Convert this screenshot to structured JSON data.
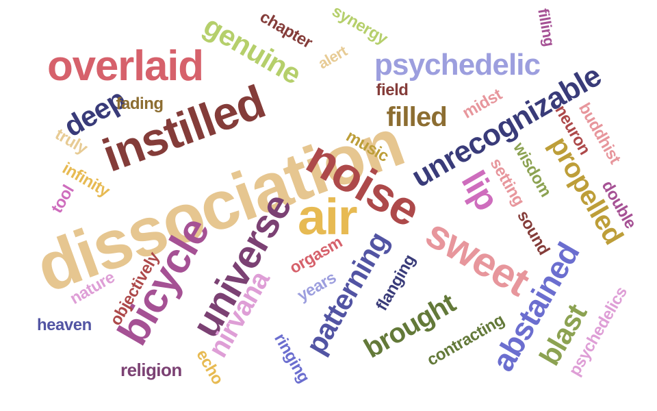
{
  "words": [
    {
      "text": "dissociation",
      "color": "#e6c690",
      "angle": -20
    },
    {
      "text": "instilled",
      "color": "#843c39",
      "angle": -20
    },
    {
      "text": "overlaid",
      "color": "#d6616b",
      "angle": 0
    },
    {
      "text": "psychedelic",
      "color": "#9c9ede",
      "angle": 0
    },
    {
      "text": "unrecognizable",
      "color": "#393b79",
      "angle": -30
    },
    {
      "text": "genuine",
      "color": "#b5cf6b",
      "angle": 30
    },
    {
      "text": "chapter",
      "color": "#843c39",
      "angle": 30
    },
    {
      "text": "synergy",
      "color": "#b5cf6b",
      "angle": 30
    },
    {
      "text": "alert",
      "color": "#e7cb94",
      "angle": -30
    },
    {
      "text": "filling",
      "color": "#a55194",
      "angle": 80
    },
    {
      "text": "deep",
      "color": "#393b79",
      "angle": -30
    },
    {
      "text": "fading",
      "color": "#8c6d31",
      "angle": 0
    },
    {
      "text": "field",
      "color": "#843c39",
      "angle": 0
    },
    {
      "text": "filled",
      "color": "#8c6d31",
      "angle": 0
    },
    {
      "text": "midst",
      "color": "#e7969c",
      "angle": -30
    },
    {
      "text": "neuron",
      "color": "#ad494a",
      "angle": 60
    },
    {
      "text": "buddhist",
      "color": "#e7969c",
      "angle": 60
    },
    {
      "text": "truly",
      "color": "#e7cb94",
      "angle": 30
    },
    {
      "text": "infinity",
      "color": "#e7ba52",
      "angle": 30
    },
    {
      "text": "music",
      "color": "#bd9e39",
      "angle": 30
    },
    {
      "text": "noise",
      "color": "#ad494a",
      "angle": 30
    },
    {
      "text": "lip",
      "color": "#ce6dbd",
      "angle": 60
    },
    {
      "text": "wisdom",
      "color": "#8ca252",
      "angle": 60
    },
    {
      "text": "setting",
      "color": "#e7969c",
      "angle": 60
    },
    {
      "text": "propelled",
      "color": "#bd9e39",
      "angle": 60
    },
    {
      "text": "double",
      "color": "#a55194",
      "angle": 60
    },
    {
      "text": "tool",
      "color": "#ce6dbd",
      "angle": -60
    },
    {
      "text": "universe",
      "color": "#7b4173",
      "angle": -60
    },
    {
      "text": "air",
      "color": "#e7ba52",
      "angle": 0
    },
    {
      "text": "sweet",
      "color": "#e7969c",
      "angle": 30
    },
    {
      "text": "sound",
      "color": "#843c39",
      "angle": 60
    },
    {
      "text": "bicycle",
      "color": "#a55194",
      "angle": -60
    },
    {
      "text": "orgasm",
      "color": "#d6616b",
      "angle": -30
    },
    {
      "text": "patterning",
      "color": "#5254a3",
      "angle": -60
    },
    {
      "text": "abstained",
      "color": "#6b6ecf",
      "angle": -60
    },
    {
      "text": "nirvana",
      "color": "#de9ed6",
      "angle": -60
    },
    {
      "text": "objectively",
      "color": "#ad494a",
      "angle": -60
    },
    {
      "text": "nature",
      "color": "#de9ed6",
      "angle": -30
    },
    {
      "text": "years",
      "color": "#9c9ede",
      "angle": -30
    },
    {
      "text": "flanging",
      "color": "#393b79",
      "angle": -60
    },
    {
      "text": "brought",
      "color": "#637939",
      "angle": -30
    },
    {
      "text": "blast",
      "color": "#8ca252",
      "angle": -60
    },
    {
      "text": "psychedelics",
      "color": "#de9ed6",
      "angle": -60
    },
    {
      "text": "heaven",
      "color": "#5254a3",
      "angle": 0
    },
    {
      "text": "contracting",
      "color": "#637939",
      "angle": -30
    },
    {
      "text": "ringing",
      "color": "#6b6ecf",
      "angle": 60
    },
    {
      "text": "echo",
      "color": "#e7ba52",
      "angle": 60
    },
    {
      "text": "religion",
      "color": "#7b4173",
      "angle": 0
    }
  ]
}
